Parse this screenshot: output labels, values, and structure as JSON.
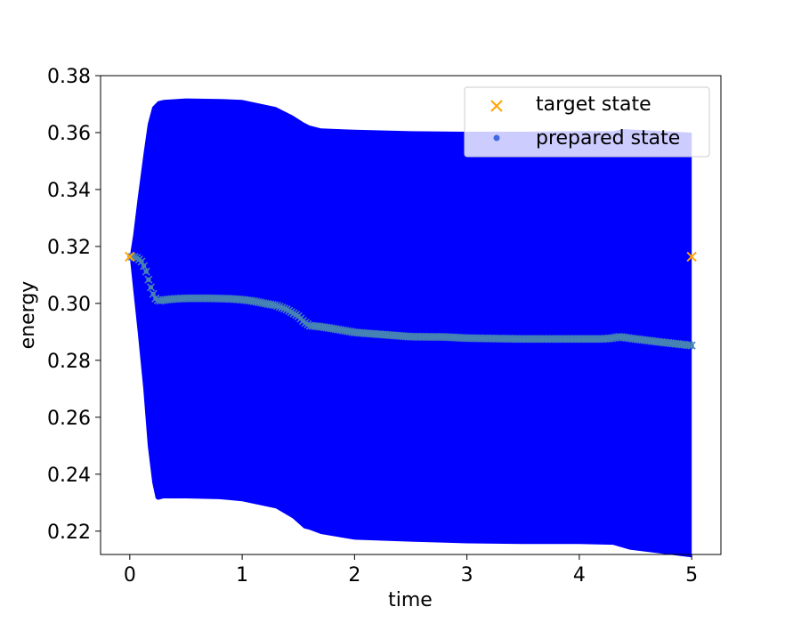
{
  "chart_data": {
    "type": "scatter",
    "xlabel": "time",
    "ylabel": "energy",
    "xlim": [
      -0.26,
      5.26
    ],
    "ylim": [
      0.2118,
      0.38
    ],
    "x_ticks": [
      0,
      1,
      2,
      3,
      4,
      5
    ],
    "y_ticks": [
      0.22,
      0.24,
      0.26,
      0.28,
      0.3,
      0.32,
      0.34,
      0.36,
      0.38
    ],
    "x_tick_labels": [
      "0",
      "1",
      "2",
      "3",
      "4",
      "5"
    ],
    "y_tick_labels": [
      "0.22",
      "0.24",
      "0.26",
      "0.28",
      "0.30",
      "0.32",
      "0.34",
      "0.36",
      "0.38"
    ],
    "grid": false,
    "legend_position": "top-right",
    "colors": {
      "target": "#ffa500",
      "prepared": "#4169e1",
      "band": "#0000ff",
      "trend": "#4682b4"
    },
    "series": [
      {
        "name": "target state",
        "marker": "x",
        "x": [
          0,
          5
        ],
        "y": [
          0.3164,
          0.3164
        ]
      },
      {
        "name": "prepared state",
        "marker": "o",
        "envelope_upper": {
          "x": [
            0,
            0.03,
            0.07,
            0.12,
            0.16,
            0.2,
            0.25,
            0.3,
            0.5,
            0.8,
            1.0,
            1.3,
            1.45,
            1.55,
            1.6,
            1.7,
            2.0,
            2.5,
            3.0,
            3.5,
            4.0,
            4.3,
            4.4,
            5.0
          ],
          "y": [
            0.3164,
            0.324,
            0.337,
            0.352,
            0.363,
            0.369,
            0.371,
            0.3715,
            0.372,
            0.3718,
            0.3715,
            0.369,
            0.366,
            0.3635,
            0.3625,
            0.3615,
            0.361,
            0.3605,
            0.3603,
            0.3603,
            0.3605,
            0.3605,
            0.3612,
            0.36
          ]
        },
        "envelope_lower": {
          "x": [
            0,
            0.03,
            0.07,
            0.12,
            0.16,
            0.2,
            0.23,
            0.25,
            0.3,
            0.5,
            0.8,
            1.0,
            1.3,
            1.45,
            1.55,
            1.6,
            1.7,
            2.0,
            2.5,
            3.0,
            3.5,
            4.0,
            4.3,
            4.45,
            5.0
          ],
          "y": [
            0.3164,
            0.305,
            0.29,
            0.27,
            0.25,
            0.237,
            0.2315,
            0.231,
            0.2315,
            0.2315,
            0.2312,
            0.2305,
            0.228,
            0.2245,
            0.221,
            0.2205,
            0.219,
            0.217,
            0.2163,
            0.2157,
            0.2155,
            0.2155,
            0.2152,
            0.2135,
            0.2108
          ]
        },
        "mean": {
          "x": [
            0,
            0.05,
            0.1,
            0.14,
            0.18,
            0.22,
            0.26,
            0.3,
            0.4,
            0.5,
            0.7,
            0.9,
            1.0,
            1.1,
            1.2,
            1.3,
            1.4,
            1.5,
            1.55,
            1.6,
            1.7,
            1.8,
            2.0,
            2.2,
            2.5,
            2.8,
            3.0,
            3.5,
            4.0,
            4.2,
            4.3,
            4.35,
            4.5,
            4.7,
            5.0
          ],
          "y": [
            0.3164,
            0.3163,
            0.315,
            0.312,
            0.3065,
            0.302,
            0.3008,
            0.3012,
            0.3016,
            0.3018,
            0.3018,
            0.3016,
            0.3013,
            0.3008,
            0.3,
            0.2993,
            0.2978,
            0.2955,
            0.2935,
            0.2922,
            0.2918,
            0.2912,
            0.2898,
            0.2892,
            0.2883,
            0.2882,
            0.2878,
            0.2875,
            0.2875,
            0.2875,
            0.2878,
            0.2883,
            0.2875,
            0.2865,
            0.2852
          ]
        }
      }
    ]
  }
}
